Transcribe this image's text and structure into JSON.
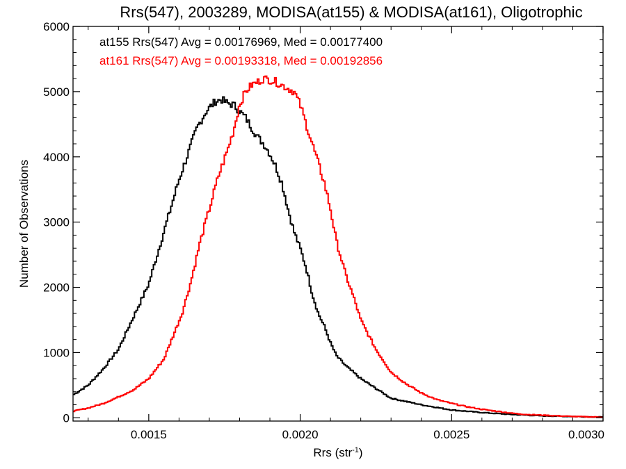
{
  "chart_data": {
    "type": "line",
    "step": true,
    "title": "Rrs(547), 2003289, MODISA(at155) & MODISA(at161), Oligotrophic",
    "xlabel": "Rrs (str",
    "xlabel_sup": "-1",
    "xlabel_suffix": ")",
    "ylabel": "Number of Observations",
    "xlim": [
      0.00125,
      0.003
    ],
    "ylim": [
      -50,
      6000
    ],
    "xticks": [
      {
        "value": 0.0015,
        "label": "0.0015"
      },
      {
        "value": 0.002,
        "label": "0.0020"
      },
      {
        "value": 0.0025,
        "label": "0.0025"
      },
      {
        "value": 0.003,
        "label": "0.0030"
      }
    ],
    "yticks": [
      {
        "value": 0,
        "label": "0"
      },
      {
        "value": 1000,
        "label": "1000"
      },
      {
        "value": 2000,
        "label": "2000"
      },
      {
        "value": 3000,
        "label": "3000"
      },
      {
        "value": 4000,
        "label": "4000"
      },
      {
        "value": 5000,
        "label": "5000"
      },
      {
        "value": 6000,
        "label": "6000"
      }
    ],
    "annotations": [
      {
        "text": "at155 Rrs(547) Avg = 0.00176969, Med = 0.00177400",
        "color": "#000000"
      },
      {
        "text": "at161 Rrs(547) Avg = 0.00193318, Med = 0.00192856",
        "color": "#ff0000"
      }
    ],
    "series": [
      {
        "color": "#000000",
        "x": [
          0.00125,
          0.0013,
          0.00135,
          0.0014,
          0.00145,
          0.0015,
          0.00155,
          0.0016,
          0.00163,
          0.00166,
          0.00169,
          0.00172,
          0.00174,
          0.00176,
          0.00178,
          0.0018,
          0.00182,
          0.00184,
          0.00186,
          0.00188,
          0.0019,
          0.00192,
          0.00194,
          0.00196,
          0.00198,
          0.002,
          0.00202,
          0.00204,
          0.00206,
          0.00208,
          0.0021,
          0.00212,
          0.00215,
          0.0022,
          0.00225,
          0.0023,
          0.0024,
          0.0025,
          0.0026,
          0.0027,
          0.0028,
          0.0029,
          0.003
        ],
        "y": [
          350,
          500,
          750,
          1050,
          1550,
          2050,
          2850,
          3650,
          4050,
          4450,
          4700,
          4850,
          4880,
          4820,
          4800,
          4700,
          4600,
          4450,
          4300,
          4200,
          4050,
          3850,
          3600,
          3200,
          2850,
          2600,
          2300,
          1900,
          1600,
          1400,
          1150,
          950,
          800,
          600,
          450,
          300,
          200,
          120,
          80,
          50,
          30,
          20,
          10
        ]
      },
      {
        "color": "#ff0000",
        "x": [
          0.00125,
          0.0013,
          0.00135,
          0.0014,
          0.00145,
          0.0015,
          0.00155,
          0.00158,
          0.00161,
          0.00164,
          0.00167,
          0.0017,
          0.00173,
          0.00176,
          0.00178,
          0.0018,
          0.00182,
          0.00184,
          0.00186,
          0.00188,
          0.0019,
          0.00192,
          0.00194,
          0.00196,
          0.00198,
          0.002,
          0.00202,
          0.00204,
          0.00206,
          0.00208,
          0.0021,
          0.00212,
          0.00215,
          0.00218,
          0.0022,
          0.00225,
          0.0023,
          0.00235,
          0.0024,
          0.00245,
          0.0025,
          0.00255,
          0.0026,
          0.00265,
          0.0027,
          0.00275,
          0.0028,
          0.00285,
          0.0029,
          0.00295,
          0.003
        ],
        "y": [
          100,
          150,
          220,
          320,
          430,
          600,
          900,
          1250,
          1600,
          2100,
          2700,
          3200,
          3700,
          4100,
          4400,
          4800,
          5000,
          5100,
          5150,
          5200,
          5180,
          5150,
          5100,
          5050,
          5000,
          4800,
          4500,
          4200,
          3900,
          3600,
          3200,
          2700,
          2200,
          1800,
          1500,
          1050,
          700,
          520,
          380,
          280,
          220,
          170,
          130,
          100,
          70,
          50,
          40,
          30,
          20,
          15,
          10
        ]
      }
    ],
    "grid": false,
    "legend": "none"
  }
}
